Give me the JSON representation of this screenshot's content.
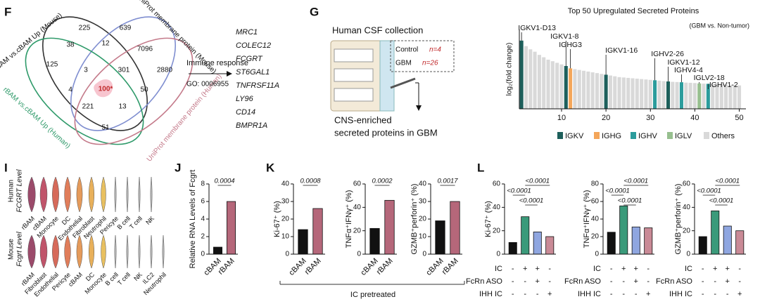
{
  "panels": {
    "F": {
      "letter": "F",
      "venn_labels": [
        "rBAM vs.cBAM Up (Mouse)",
        "UniProt membrane protein (Mouse)",
        "rBAM vs.cBAM Up (Human)",
        "UniProt membrane protein (Human)"
      ],
      "venn_numbers": [
        "225",
        "639",
        "38",
        "12",
        "7096",
        "125",
        "3",
        "301",
        "2880",
        "4",
        "100*",
        "50",
        "221",
        "13",
        "51"
      ],
      "arrow_label": "Immune response",
      "go": "GO: 0006955",
      "genes": [
        "MRC1",
        "COLEC12",
        "FCGRT",
        "ST6GAL1",
        "TNFRSF11A",
        "LY96",
        "CD14",
        "BMPR1A"
      ]
    },
    "G": {
      "letter": "G",
      "title": "Human CSF collection",
      "control": "Control",
      "control_n": "n=4",
      "gbm": "GBM",
      "gbm_n": "n=26",
      "caption": [
        "CNS-enriched",
        "secreted proteins in GBM"
      ]
    },
    "I": {
      "letter": "I",
      "human_label": [
        "Human",
        "FCGRT Level"
      ],
      "mouse_label": [
        "Mouse",
        "Fcgrt Level"
      ],
      "human_categories": [
        "rBAM",
        "cBAM",
        "Monocyte",
        "DC",
        "Endothelial",
        "Fibroblast",
        "Neutrophil",
        "Pericyte",
        "B cell",
        "T cell",
        "NK"
      ],
      "mouse_categories": [
        "rBAM",
        "Fibroblast",
        "Endothelial",
        "Pericyte",
        "cBAM",
        "DC",
        "Monocyte",
        "B cell",
        "T cell",
        "NK",
        "ILC2",
        "Neutrophil"
      ]
    },
    "J": {
      "letter": "J"
    },
    "K": {
      "letter": "K",
      "note": "IC pretreated"
    },
    "L": {
      "letter": "L"
    }
  },
  "chart_data": [
    {
      "type": "bar",
      "title": "Top 50 Upregulated Secreted Proteins",
      "subtitle": "(GBM vs. Non-tumor)",
      "ylabel": "log₂(fold change)",
      "x": [
        1,
        2,
        3,
        4,
        5,
        6,
        7,
        8,
        9,
        10,
        11,
        12,
        13,
        14,
        15,
        16,
        17,
        18,
        19,
        20,
        21,
        22,
        23,
        24,
        25,
        26,
        27,
        28,
        29,
        30,
        31,
        32,
        33,
        34,
        35,
        36,
        37,
        38,
        39,
        40,
        41,
        42,
        43,
        44,
        45,
        46,
        47,
        48,
        49,
        50
      ],
      "values": [
        8.6,
        7.9,
        7.5,
        7.2,
        6.8,
        6.5,
        6.2,
        6.0,
        5.8,
        5.6,
        5.4,
        5.1,
        5.0,
        4.9,
        4.8,
        4.7,
        4.6,
        4.5,
        4.4,
        4.3,
        4.2,
        4.1,
        4.0,
        3.95,
        3.9,
        3.85,
        3.8,
        3.75,
        3.7,
        3.65,
        3.6,
        3.55,
        3.5,
        3.45,
        3.4,
        3.38,
        3.35,
        3.3,
        3.28,
        3.25,
        3.2,
        3.18,
        3.15,
        3.12,
        3.1,
        3.08,
        3.05,
        3.0,
        2.98,
        2.95
      ],
      "colors": [
        "#1d5f5b",
        "#d9d9d9",
        "#d9d9d9",
        "#d9d9d9",
        "#d9d9d9",
        "#d9d9d9",
        "#d9d9d9",
        "#d9d9d9",
        "#d9d9d9",
        "#d9d9d9",
        "#1d5f5b",
        "#f4a65a",
        "#d9d9d9",
        "#d9d9d9",
        "#d9d9d9",
        "#d9d9d9",
        "#d9d9d9",
        "#d9d9d9",
        "#d9d9d9",
        "#1d5f5b",
        "#d9d9d9",
        "#d9d9d9",
        "#d9d9d9",
        "#d9d9d9",
        "#d9d9d9",
        "#d9d9d9",
        "#d9d9d9",
        "#d9d9d9",
        "#d9d9d9",
        "#d9d9d9",
        "#2b9c9c",
        "#d9d9d9",
        "#d9d9d9",
        "#1d5f5b",
        "#d9d9d9",
        "#d9d9d9",
        "#2b9c9c",
        "#d9d9d9",
        "#d9d9d9",
        "#d9d9d9",
        "#97bf8f",
        "#d9d9d9",
        "#2b9c9c",
        "#d9d9d9",
        "#d9d9d9",
        "#d9d9d9",
        "#d9d9d9",
        "#d9d9d9",
        "#d9d9d9",
        "#d9d9d9"
      ],
      "xlim": [
        0.5,
        51.5
      ],
      "xticks": [
        10,
        20,
        30,
        40,
        50
      ],
      "ylim": [
        0,
        10
      ],
      "annotations": [
        {
          "text": "IGKV1-D13",
          "x": 1
        },
        {
          "text": "IGKV1-8",
          "x": 11
        },
        {
          "text": "IGHG3",
          "x": 12
        },
        {
          "text": "IGKV1-16",
          "x": 20
        },
        {
          "text": "IGHV2-26",
          "x": 31
        },
        {
          "text": "IGKV1-12",
          "x": 34
        },
        {
          "text": "IGHV4-4",
          "x": 37
        },
        {
          "text": "IGLV2-18",
          "x": 41
        },
        {
          "text": "IGHV1-2",
          "x": 43
        }
      ],
      "legend": [
        {
          "name": "IGKV",
          "color": "#1d5f5b"
        },
        {
          "name": "IGHG",
          "color": "#f4a65a"
        },
        {
          "name": "IGHV",
          "color": "#2b9c9c"
        },
        {
          "name": "IGLV",
          "color": "#97bf8f"
        },
        {
          "name": "Others",
          "color": "#d9d9d9"
        }
      ]
    },
    {
      "type": "bar",
      "ylabel": "Relative RNA Levels of Fcgrt",
      "categories": [
        "cBAM",
        "rBAM"
      ],
      "values": [
        0.8,
        6.0
      ],
      "colors": [
        "#111111",
        "#b5677a"
      ],
      "ylim": [
        0,
        8
      ],
      "yticks": [
        0,
        2,
        4,
        6,
        8
      ],
      "pvalues": [
        "0.0004"
      ]
    },
    {
      "type": "bar",
      "ylabel": "Ki-67⁺ (%)",
      "categories": [
        "cBAM",
        "rBAM"
      ],
      "values": [
        14,
        26
      ],
      "colors": [
        "#111111",
        "#b5677a"
      ],
      "ylim": [
        0,
        40
      ],
      "yticks": [
        0,
        10,
        20,
        30,
        40
      ],
      "pvalues": [
        "0.0008"
      ]
    },
    {
      "type": "bar",
      "ylabel": "TNFα⁺IFNγ⁺ (%)",
      "categories": [
        "cBAM",
        "rBAM"
      ],
      "values": [
        22,
        46
      ],
      "colors": [
        "#111111",
        "#b5677a"
      ],
      "ylim": [
        0,
        60
      ],
      "yticks": [
        0,
        20,
        40,
        60
      ],
      "pvalues": [
        "0.0002"
      ]
    },
    {
      "type": "bar",
      "ylabel": "GZMB⁺perforin⁺ (%)",
      "categories": [
        "cBAM",
        "rBAM"
      ],
      "values": [
        19,
        30
      ],
      "colors": [
        "#111111",
        "#b5677a"
      ],
      "ylim": [
        0,
        40
      ],
      "yticks": [
        0,
        10,
        20,
        30,
        40
      ],
      "pvalues": [
        "0.0017"
      ]
    },
    {
      "type": "bar",
      "ylabel": "Ki-67⁺ (%)",
      "values": [
        10,
        32,
        19,
        15
      ],
      "colors": [
        "#111111",
        "#3a9a7a",
        "#8fa6e0",
        "#c98a96"
      ],
      "ylim": [
        0,
        60
      ],
      "yticks": [
        0,
        20,
        40,
        60
      ],
      "pvalues": [
        "<0.0001",
        "<0.0001",
        "<0.0001"
      ],
      "conditions": [
        {
          "name": "IC",
          "signs": [
            "-",
            "+",
            "+",
            "-"
          ]
        },
        {
          "name": "FcRn ASO",
          "signs": [
            "-",
            "-",
            "+",
            "-"
          ]
        },
        {
          "name": "IHH IC",
          "signs": [
            "-",
            "-",
            "-",
            "+"
          ]
        }
      ]
    },
    {
      "type": "bar",
      "ylabel": "TNFα⁺IFNγ⁺ (%)",
      "values": [
        25,
        55,
        31,
        30
      ],
      "colors": [
        "#111111",
        "#3a9a7a",
        "#8fa6e0",
        "#c98a96"
      ],
      "ylim": [
        0,
        80
      ],
      "yticks": [
        0,
        20,
        40,
        60,
        80
      ],
      "pvalues": [
        "<0.0001",
        "<0.0001",
        "<0.0001"
      ],
      "conditions": [
        {
          "name": "IC",
          "signs": [
            "-",
            "+",
            "+",
            "-"
          ]
        },
        {
          "name": "FcRn ASO",
          "signs": [
            "-",
            "-",
            "+",
            "-"
          ]
        },
        {
          "name": "IHH IC",
          "signs": [
            "-",
            "-",
            "-",
            "+"
          ]
        }
      ]
    },
    {
      "type": "bar",
      "ylabel": "GZMB⁺perforin⁺ (%)",
      "values": [
        15,
        37,
        24,
        20
      ],
      "colors": [
        "#111111",
        "#3a9a7a",
        "#8fa6e0",
        "#c98a96"
      ],
      "ylim": [
        0,
        60
      ],
      "yticks": [
        0,
        20,
        40,
        60
      ],
      "pvalues": [
        "<0.0001",
        "<0.0001",
        "<0.0001"
      ],
      "conditions": [
        {
          "name": "IC",
          "signs": [
            "-",
            "+",
            "+",
            "-"
          ]
        },
        {
          "name": "FcRn ASO",
          "signs": [
            "-",
            "-",
            "+",
            "-"
          ]
        },
        {
          "name": "IHH IC",
          "signs": [
            "-",
            "-",
            "-",
            "+"
          ]
        }
      ]
    }
  ]
}
